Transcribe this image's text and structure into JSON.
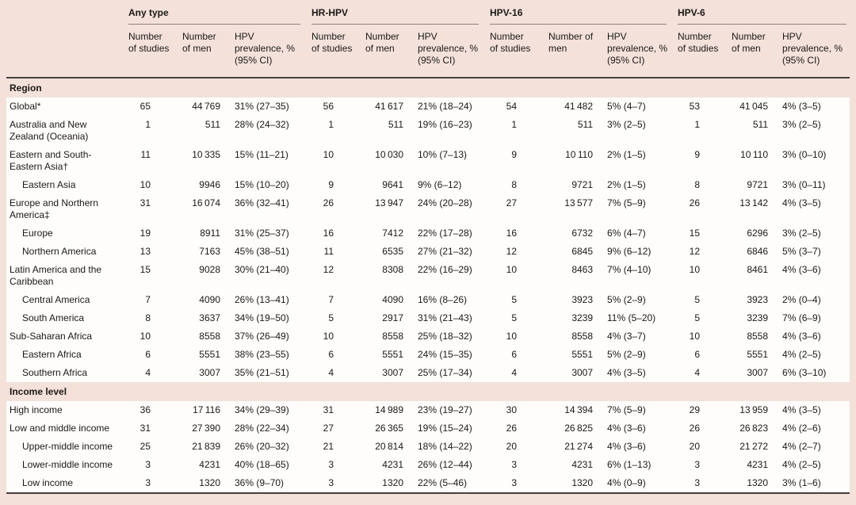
{
  "table": {
    "groups": [
      {
        "label": "Any type"
      },
      {
        "label": "HR-HPV"
      },
      {
        "label": "HPV-16"
      },
      {
        "label": "HPV-6"
      }
    ],
    "subheaders": {
      "studies": "Number of studies",
      "men": "Number of men",
      "prevalence": "HPV prevalence, % (95% CI)"
    },
    "sections": [
      {
        "label": "Region",
        "rows": [
          {
            "label": "Global*",
            "indent": false,
            "cells": [
              "65",
              "44 769",
              "31% (27–35)",
              "56",
              "41 617",
              "21% (18–24)",
              "54",
              "41 482",
              "5% (4–7)",
              "53",
              "41 045",
              "4% (3–5)"
            ]
          },
          {
            "label": "Australia and New Zealand (Oceania)",
            "indent": false,
            "cells": [
              "1",
              "511",
              "28% (24–32)",
              "1",
              "511",
              "19% (16–23)",
              "1",
              "511",
              "3% (2–5)",
              "1",
              "511",
              "3% (2–5)"
            ]
          },
          {
            "label": "Eastern and South-Eastern Asia†",
            "indent": false,
            "cells": [
              "11",
              "10 335",
              "15% (11–21)",
              "10",
              "10 030",
              "10% (7–13)",
              "9",
              "10 110",
              "2% (1–5)",
              "9",
              "10 110",
              "3% (0–10)"
            ]
          },
          {
            "label": "Eastern Asia",
            "indent": true,
            "cells": [
              "10",
              "9946",
              "15% (10–20)",
              "9",
              "9641",
              "9% (6–12)",
              "8",
              "9721",
              "2% (1–5)",
              "8",
              "9721",
              "3% (0–11)"
            ]
          },
          {
            "label": "Europe and Northern America‡",
            "indent": false,
            "cells": [
              "31",
              "16 074",
              "36% (32–41)",
              "26",
              "13 947",
              "24% (20–28)",
              "27",
              "13 577",
              "7% (5–9)",
              "26",
              "13 142",
              "4% (3–5)"
            ]
          },
          {
            "label": "Europe",
            "indent": true,
            "cells": [
              "19",
              "8911",
              "31% (25–37)",
              "16",
              "7412",
              "22% (17–28)",
              "16",
              "6732",
              "6% (4–7)",
              "15",
              "6296",
              "3% (2–5)"
            ]
          },
          {
            "label": "Northern America",
            "indent": true,
            "cells": [
              "13",
              "7163",
              "45% (38–51)",
              "11",
              "6535",
              "27% (21–32)",
              "12",
              "6845",
              "9% (6–12)",
              "12",
              "6846",
              "5% (3–7)"
            ]
          },
          {
            "label": "Latin America and the Caribbean",
            "indent": false,
            "cells": [
              "15",
              "9028",
              "30% (21–40)",
              "12",
              "8308",
              "22% (16–29)",
              "10",
              "8463",
              "7% (4–10)",
              "10",
              "8461",
              "4% (3–6)"
            ]
          },
          {
            "label": "Central America",
            "indent": true,
            "cells": [
              "7",
              "4090",
              "26% (13–41)",
              "7",
              "4090",
              "16% (8–26)",
              "5",
              "3923",
              "5% (2–9)",
              "5",
              "3923",
              "2% (0–4)"
            ]
          },
          {
            "label": "South America",
            "indent": true,
            "cells": [
              "8",
              "3637",
              "34% (19–50)",
              "5",
              "2917",
              "31% (21–43)",
              "5",
              "3239",
              "11% (5–20)",
              "5",
              "3239",
              "7% (6–9)"
            ]
          },
          {
            "label": "Sub-Saharan Africa",
            "indent": false,
            "cells": [
              "10",
              "8558",
              "37% (26–49)",
              "10",
              "8558",
              "25% (18–32)",
              "10",
              "8558",
              "4% (3–7)",
              "10",
              "8558",
              "4% (3–6)"
            ]
          },
          {
            "label": "Eastern Africa",
            "indent": true,
            "cells": [
              "6",
              "5551",
              "38% (23–55)",
              "6",
              "5551",
              "24% (15–35)",
              "6",
              "5551",
              "5% (2–9)",
              "6",
              "5551",
              "4% (2–5)"
            ]
          },
          {
            "label": "Southern Africa",
            "indent": true,
            "cells": [
              "4",
              "3007",
              "35% (21–51)",
              "4",
              "3007",
              "25% (17–34)",
              "4",
              "3007",
              "4% (3–5)",
              "4",
              "3007",
              "6% (3–10)"
            ]
          }
        ]
      },
      {
        "label": "Income level",
        "rows": [
          {
            "label": "High income",
            "indent": false,
            "cells": [
              "36",
              "17 116",
              "34% (29–39)",
              "31",
              "14 989",
              "23% (19–27)",
              "30",
              "14 394",
              "7% (5–9)",
              "29",
              "13 959",
              "4% (3–5)"
            ]
          },
          {
            "label": "Low and middle income",
            "indent": false,
            "cells": [
              "31",
              "27 390",
              "28% (22–34)",
              "27",
              "26 365",
              "19% (15–24)",
              "26",
              "26 825",
              "4% (3–6)",
              "26",
              "26 823",
              "4% (2–6)"
            ]
          },
          {
            "label": "Upper-middle income",
            "indent": true,
            "cells": [
              "25",
              "21 839",
              "26% (20–32)",
              "21",
              "20 814",
              "18% (14–22)",
              "20",
              "21 274",
              "4% (3–6)",
              "20",
              "21 272",
              "4% (2–7)"
            ]
          },
          {
            "label": "Lower-middle income",
            "indent": true,
            "cells": [
              "3",
              "4231",
              "40% (18–65)",
              "3",
              "4231",
              "26% (12–44)",
              "3",
              "4231",
              "6% (1–13)",
              "3",
              "4231",
              "4% (2–5)"
            ]
          },
          {
            "label": "Low income",
            "indent": true,
            "cells": [
              "3",
              "1320",
              "36% (9–70)",
              "3",
              "1320",
              "22% (5–46)",
              "3",
              "1320",
              "4% (0–9)",
              "3",
              "1320",
              "3% (1–6)"
            ]
          }
        ]
      }
    ]
  },
  "colors": {
    "page_background": "#f3e1da",
    "row_background": "#fefdfb",
    "heavy_rule": "#46413d",
    "group_rule": "#8d817b",
    "text": "#1b1917"
  }
}
